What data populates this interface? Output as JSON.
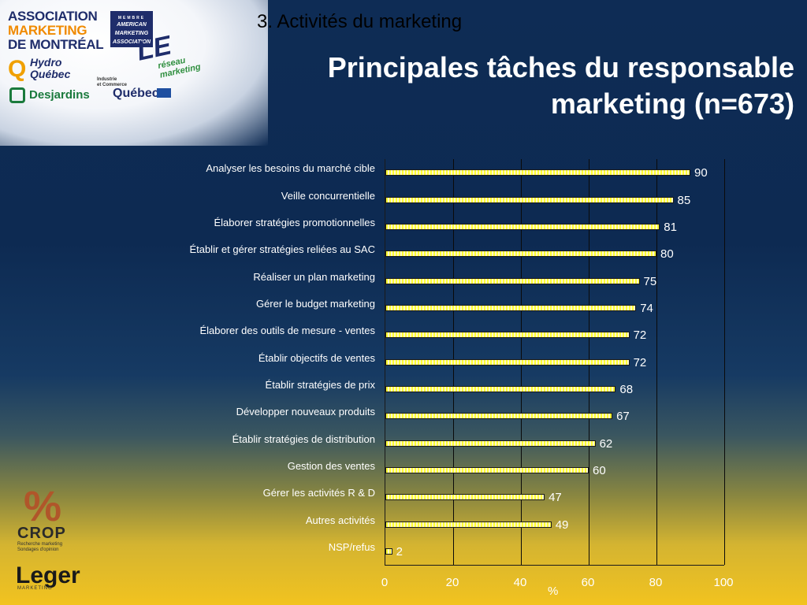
{
  "header": {
    "section_label": "3. Activités du marketing",
    "title_line1": "Principales tâches du responsable",
    "title_line2": "marketing (n=673)"
  },
  "logos": {
    "amm": [
      "ASSOCIATION",
      "MARKETING",
      "DE MONTRÉAL"
    ],
    "ama": {
      "member": "MEMBRE",
      "line1": "AMERICAN",
      "line2": "MARKETING",
      "line3": "ASSOCIATION"
    },
    "le_reseau": {
      "le": "LE",
      "sub": "réseau marketing"
    },
    "hydro": {
      "line1": "Hydro",
      "line2": "Québec"
    },
    "industrie": {
      "line1": "Industrie",
      "line2": "et Commerce",
      "quebec": "Québec"
    },
    "desjardins": "Desjardins",
    "crop": {
      "word": "CROP",
      "line1": "Recherche marketing",
      "line2": "Sondages d'opinion"
    },
    "leger": {
      "word": "Leger",
      "sub": "MARKETING"
    }
  },
  "chart_data": {
    "type": "bar",
    "orientation": "horizontal",
    "categories": [
      "Analyser les besoins du marché cible",
      "Veille concurrentielle",
      "Élaborer stratégies promotionnelles",
      "Établir et gérer stratégies reliées au SAC",
      "Réaliser un plan marketing",
      "Gérer le budget marketing",
      "Élaborer des outils de mesure - ventes",
      "Établir objectifs de ventes",
      "Établir stratégies de prix",
      "Développer nouveaux produits",
      "Établir stratégies de distribution",
      "Gestion des ventes",
      "Gérer les activités R & D",
      "Autres activités",
      "NSP/refus"
    ],
    "values": [
      90,
      85,
      81,
      80,
      75,
      74,
      72,
      72,
      68,
      67,
      62,
      60,
      47,
      49,
      2
    ],
    "xlabel": "%",
    "xlim": [
      0,
      100
    ],
    "xticks": [
      0,
      20,
      40,
      60,
      80,
      100
    ],
    "grid": "vertical",
    "bar_color": "#ffff33"
  }
}
